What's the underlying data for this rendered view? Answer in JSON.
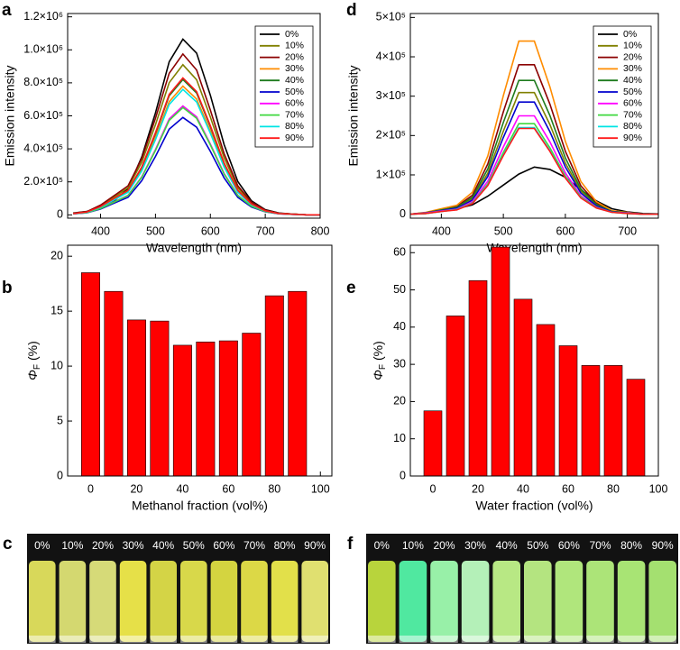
{
  "chart_data": [
    {
      "type": "line",
      "panel_label": "a",
      "xlabel": "Wavelength (nm)",
      "ylabel": "Emission intensity",
      "x": [
        350,
        375,
        400,
        425,
        450,
        475,
        500,
        525,
        550,
        575,
        600,
        625,
        650,
        675,
        700,
        725,
        750,
        775,
        800
      ],
      "xlim": [
        340,
        800
      ],
      "xticks": [
        400,
        500,
        600,
        700,
        800
      ],
      "ylim": [
        -20000,
        1220000
      ],
      "yticks": [
        0,
        {
          "value": 200000,
          "label": "2.0×10⁵"
        },
        {
          "value": 400000,
          "label": "4.0×10⁵"
        },
        {
          "value": 600000,
          "label": "6.0×10⁵"
        },
        {
          "value": 800000,
          "label": "8.0×10⁵"
        },
        {
          "value": 1000000,
          "label": "1.0×10⁶"
        },
        {
          "value": 1200000,
          "label": "1.2×10⁶"
        }
      ],
      "legend": "upper right",
      "series": [
        {
          "name": "0%",
          "color": "#000000",
          "values": [
            11000,
            21000,
            43000,
            85000,
            160000,
            351000,
            618000,
            927000,
            1065000,
            980000,
            724000,
            426000,
            202000,
            85000,
            32000,
            11000,
            5000,
            0,
            0
          ]
        },
        {
          "name": "10%",
          "color": "#808000",
          "values": [
            9000,
            18000,
            55000,
            109000,
            164000,
            319000,
            546000,
            801000,
            910000,
            819000,
            592000,
            346000,
            164000,
            73000,
            27000,
            9000,
            5000,
            0,
            0
          ]
        },
        {
          "name": "20%",
          "color": "#8b0000",
          "values": [
            10000,
            20000,
            59000,
            117000,
            176000,
            341000,
            585000,
            858000,
            975000,
            878000,
            634000,
            371000,
            176000,
            78000,
            29000,
            10000,
            5000,
            0,
            0
          ]
        },
        {
          "name": "30%",
          "color": "#ff8c00",
          "values": [
            8000,
            16000,
            47000,
            94000,
            140000,
            273000,
            468000,
            686000,
            780000,
            702000,
            507000,
            296000,
            140000,
            62000,
            23000,
            8000,
            4000,
            0,
            0
          ]
        },
        {
          "name": "40%",
          "color": "#1e7b1e",
          "values": [
            8000,
            16000,
            49000,
            98000,
            148000,
            287000,
            492000,
            722000,
            820000,
            738000,
            533000,
            312000,
            148000,
            66000,
            25000,
            8000,
            4000,
            0,
            0
          ]
        },
        {
          "name": "50%",
          "color": "#0000cd",
          "values": [
            6000,
            12000,
            35000,
            71000,
            106000,
            207000,
            354000,
            519000,
            590000,
            531000,
            384000,
            224000,
            106000,
            47000,
            18000,
            6000,
            3000,
            0,
            0
          ]
        },
        {
          "name": "60%",
          "color": "#ff00ff",
          "values": [
            7000,
            13000,
            40000,
            79000,
            119000,
            231000,
            396000,
            581000,
            660000,
            594000,
            429000,
            251000,
            119000,
            53000,
            20000,
            7000,
            3000,
            0,
            0
          ]
        },
        {
          "name": "70%",
          "color": "#3fd83f",
          "values": [
            7000,
            13000,
            39000,
            78000,
            117000,
            228000,
            390000,
            572000,
            650000,
            585000,
            423000,
            247000,
            117000,
            52000,
            20000,
            7000,
            3000,
            0,
            0
          ]
        },
        {
          "name": "80%",
          "color": "#00e5e5",
          "values": [
            8000,
            15000,
            46000,
            91000,
            137000,
            266000,
            456000,
            669000,
            760000,
            684000,
            494000,
            289000,
            137000,
            61000,
            23000,
            8000,
            4000,
            0,
            0
          ]
        },
        {
          "name": "90%",
          "color": "#ff1a1a",
          "values": [
            8000,
            17000,
            50000,
            100000,
            149000,
            291000,
            498000,
            730000,
            830000,
            747000,
            540000,
            315000,
            149000,
            66000,
            25000,
            8000,
            4000,
            0,
            0
          ]
        }
      ]
    },
    {
      "type": "line",
      "panel_label": "d",
      "xlabel": "Wavelength (nm)",
      "ylabel": "Emission intensity",
      "x": [
        350,
        375,
        400,
        425,
        450,
        475,
        500,
        525,
        550,
        575,
        600,
        625,
        650,
        675,
        700,
        725,
        750
      ],
      "xlim": [
        350,
        750
      ],
      "xticks": [
        400,
        500,
        600,
        700
      ],
      "ylim": [
        -10000,
        510000
      ],
      "yticks": [
        0,
        {
          "value": 100000,
          "label": "1×10⁵"
        },
        {
          "value": 200000,
          "label": "2×10⁵"
        },
        {
          "value": 300000,
          "label": "3×10⁵"
        },
        {
          "value": 400000,
          "label": "4×10⁵"
        },
        {
          "value": 500000,
          "label": "5×10⁵"
        }
      ],
      "legend": "upper right",
      "series": [
        {
          "name": "0%",
          "color": "#000000",
          "values": [
            0,
            2000,
            10000,
            14000,
            24000,
            46000,
            74000,
            102000,
            120000,
            114000,
            94000,
            62000,
            34000,
            14000,
            6000,
            2000,
            1000
          ]
        },
        {
          "name": "10%",
          "color": "#808000",
          "values": [
            0,
            3000,
            10000,
            16000,
            39000,
            104000,
            211000,
            309000,
            309000,
            228000,
            130000,
            59000,
            23000,
            7000,
            3000,
            0,
            0
          ]
        },
        {
          "name": "20%",
          "color": "#8b0000",
          "values": [
            0,
            4000,
            12000,
            20000,
            48000,
            128000,
            260000,
            380000,
            380000,
            280000,
            160000,
            72000,
            28000,
            8000,
            4000,
            0,
            0
          ]
        },
        {
          "name": "30%",
          "color": "#ff8c00",
          "values": [
            0,
            5000,
            14000,
            23000,
            56000,
            148000,
            301000,
            440000,
            440000,
            324000,
            185000,
            83000,
            32000,
            9000,
            5000,
            0,
            0
          ]
        },
        {
          "name": "40%",
          "color": "#1e7b1e",
          "values": [
            0,
            4000,
            11000,
            18000,
            43000,
            115000,
            233000,
            340000,
            340000,
            251000,
            143000,
            64000,
            25000,
            7000,
            4000,
            0,
            0
          ]
        },
        {
          "name": "50%",
          "color": "#0000cd",
          "values": [
            0,
            3000,
            9000,
            15000,
            36000,
            96000,
            195000,
            285000,
            285000,
            210000,
            120000,
            54000,
            21000,
            6000,
            3000,
            0,
            0
          ]
        },
        {
          "name": "60%",
          "color": "#ff00ff",
          "values": [
            0,
            3000,
            8000,
            13000,
            32000,
            84000,
            171000,
            250000,
            250000,
            184000,
            105000,
            47000,
            18000,
            5000,
            3000,
            0,
            0
          ]
        },
        {
          "name": "70%",
          "color": "#3fd83f",
          "values": [
            0,
            2000,
            7000,
            12000,
            29000,
            77000,
            157000,
            230000,
            230000,
            169000,
            97000,
            44000,
            17000,
            5000,
            2000,
            0,
            0
          ]
        },
        {
          "name": "80%",
          "color": "#00e5e5",
          "values": [
            0,
            2000,
            7000,
            12000,
            28000,
            74000,
            151000,
            220000,
            220000,
            162000,
            93000,
            42000,
            16000,
            5000,
            2000,
            0,
            0
          ]
        },
        {
          "name": "90%",
          "color": "#ff1a1a",
          "values": [
            0,
            2000,
            7000,
            11000,
            27000,
            73000,
            149000,
            218000,
            218000,
            160000,
            92000,
            41000,
            16000,
            5000,
            2000,
            0,
            0
          ]
        }
      ]
    },
    {
      "type": "bar",
      "panel_label": "b",
      "xlabel": "Methanol fraction (vol%)",
      "ylabel": {
        "symbol": "Φ",
        "subscript": "F",
        "unit": "(%)"
      },
      "x": [
        0,
        10,
        20,
        30,
        40,
        50,
        60,
        70,
        80,
        90
      ],
      "values": [
        18.5,
        16.8,
        14.2,
        14.1,
        11.9,
        12.2,
        12.3,
        13.0,
        16.4,
        16.8
      ],
      "color": "#ff0000",
      "xlim": [
        -10,
        105
      ],
      "xticks": [
        0,
        20,
        40,
        60,
        80,
        100
      ],
      "ylim": [
        0,
        21
      ],
      "yticks": [
        0,
        5,
        10,
        15,
        20
      ]
    },
    {
      "type": "bar",
      "panel_label": "e",
      "xlabel": "Water fraction (vol%)",
      "ylabel": {
        "symbol": "Φ",
        "subscript": "F",
        "unit": "(%)"
      },
      "x": [
        0,
        10,
        20,
        30,
        40,
        50,
        60,
        70,
        80,
        90
      ],
      "values": [
        17.5,
        43,
        52.5,
        61.5,
        47.5,
        40.7,
        35,
        29.7,
        29.7,
        26
      ],
      "color": "#ff0000",
      "xlim": [
        -10,
        100
      ],
      "xticks": [
        0,
        20,
        40,
        60,
        80,
        100
      ],
      "ylim": [
        0,
        62
      ],
      "yticks": [
        0,
        10,
        20,
        30,
        40,
        50,
        60
      ]
    }
  ],
  "photos": [
    {
      "panel_label": "c",
      "labels": [
        "0%",
        "10%",
        "20%",
        "30%",
        "40%",
        "50%",
        "60%",
        "70%",
        "80%",
        "90%"
      ]
    },
    {
      "panel_label": "f",
      "labels": [
        "0%",
        "10%",
        "20%",
        "30%",
        "40%",
        "50%",
        "60%",
        "70%",
        "80%",
        "90%"
      ]
    }
  ]
}
